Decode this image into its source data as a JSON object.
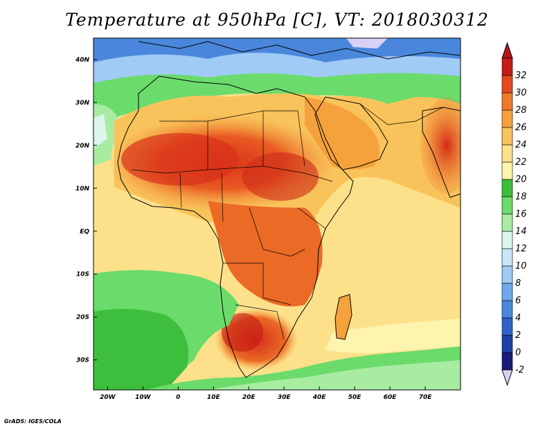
{
  "title": "Temperature at 950hPa [C], VT: 2018030312",
  "credit": "GrADS: IGES/COLA",
  "map": {
    "lon_range": [
      -24,
      80
    ],
    "lat_range": [
      -37,
      45
    ],
    "lon_labels": [
      {
        "value": -20,
        "text": "20W"
      },
      {
        "value": -10,
        "text": "10W"
      },
      {
        "value": 0,
        "text": "0"
      },
      {
        "value": 10,
        "text": "10E"
      },
      {
        "value": 20,
        "text": "20E"
      },
      {
        "value": 30,
        "text": "30E"
      },
      {
        "value": 40,
        "text": "40E"
      },
      {
        "value": 50,
        "text": "50E"
      },
      {
        "value": 60,
        "text": "60E"
      },
      {
        "value": 70,
        "text": "70E"
      }
    ],
    "lat_labels": [
      {
        "value": 40,
        "text": "40N"
      },
      {
        "value": 30,
        "text": "30N"
      },
      {
        "value": 20,
        "text": "20N"
      },
      {
        "value": 10,
        "text": "10N"
      },
      {
        "value": 0,
        "text": "EQ"
      },
      {
        "value": -10,
        "text": "10S"
      },
      {
        "value": -20,
        "text": "20S"
      },
      {
        "value": -30,
        "text": "30S"
      }
    ]
  },
  "colorbar": {
    "levels": [
      "-2",
      "0",
      "2",
      "4",
      "6",
      "8",
      "10",
      "12",
      "14",
      "16",
      "18",
      "20",
      "22",
      "24",
      "26",
      "28",
      "30",
      "32"
    ],
    "colors": [
      "#1a1a7a",
      "#1e3fa6",
      "#2f63c8",
      "#4a87dc",
      "#6fa8ec",
      "#9fcbf5",
      "#c8e6fa",
      "#dcf5ea",
      "#a8eca2",
      "#6bdb6b",
      "#3dbf3d",
      "#fff4ad",
      "#fde18a",
      "#f9c35b",
      "#f5a23c",
      "#f07a28",
      "#e5471e",
      "#c61a14"
    ],
    "under_color": "#d9d0f7",
    "over_color": "#b3151a"
  }
}
